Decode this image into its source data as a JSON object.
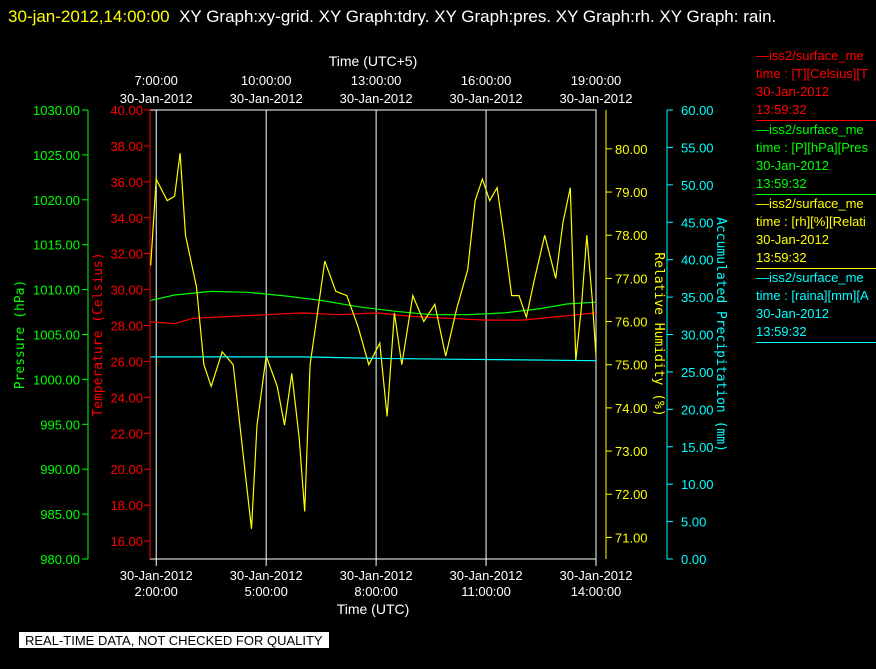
{
  "header": {
    "timestamp": "30-jan-2012,14:00:00",
    "title_rest": "XY Graph:xy-grid.  XY Graph:tdry.  XY Graph:pres.  XY Graph:rh.  XY Graph: rain."
  },
  "footer_note": "REAL-TIME DATA, NOT CHECKED FOR QUALITY",
  "legend": [
    {
      "line1": "iss2/surface_me",
      "line2": "time : [T][Celsius][T",
      "line3": "30-Jan-2012",
      "line4": "13:59:32",
      "color": "#ff0000"
    },
    {
      "line1": "iss2/surface_me",
      "line2": "time : [P][hPa][Pres",
      "line3": "30-Jan-2012",
      "line4": "13:59:32",
      "color": "#00ff00"
    },
    {
      "line1": "iss2/surface_me",
      "line2": "time : [rh][%][Relati",
      "line3": "30-Jan-2012",
      "line4": "13:59:32",
      "color": "#ffff00"
    },
    {
      "line1": "iss2/surface_me",
      "line2": "time : [raina][mm][A",
      "line3": "30-Jan-2012",
      "line4": "13:59:32",
      "color": "#00ffff"
    }
  ],
  "chart_data": {
    "type": "line",
    "x_bottom_label": "Time (UTC)",
    "x_top_label": "Time (UTC+5)",
    "x_range_utc_hours": [
      1.83,
      14.0
    ],
    "bottom_ticks": [
      {
        "h": 2,
        "date": "30-Jan-2012",
        "time": "2:00:00"
      },
      {
        "h": 5,
        "date": "30-Jan-2012",
        "time": "5:00:00"
      },
      {
        "h": 8,
        "date": "30-Jan-2012",
        "time": "8:00:00"
      },
      {
        "h": 11,
        "date": "30-Jan-2012",
        "time": "11:00:00"
      },
      {
        "h": 14,
        "date": "30-Jan-2012",
        "time": "14:00:00"
      }
    ],
    "top_ticks": [
      {
        "h": 2,
        "date": "30-Jan-2012",
        "time": "7:00:00"
      },
      {
        "h": 5,
        "date": "30-Jan-2012",
        "time": "10:00:00"
      },
      {
        "h": 8,
        "date": "30-Jan-2012",
        "time": "13:00:00"
      },
      {
        "h": 11,
        "date": "30-Jan-2012",
        "time": "16:00:00"
      },
      {
        "h": 14,
        "date": "30-Jan-2012",
        "time": "19:00:00"
      }
    ],
    "grid": true,
    "axes": {
      "pressure": {
        "label": "Pressure (hPa)",
        "color": "#00ff00",
        "min": 980,
        "max": 1030,
        "ticks": [
          "980.00",
          "985.00",
          "990.00",
          "995.00",
          "1000.00",
          "1005.00",
          "1010.00",
          "1015.00",
          "1020.00",
          "1025.00",
          "1030.00"
        ]
      },
      "temperature": {
        "label": "Temperature (Celsius)",
        "color": "#ff0000",
        "min": 15,
        "max": 40,
        "ticks": [
          "16.00",
          "18.00",
          "20.00",
          "22.00",
          "24.00",
          "26.00",
          "28.00",
          "30.00",
          "32.00",
          "34.00",
          "36.00",
          "38.00",
          "40.00"
        ]
      },
      "rh": {
        "label": "Relative Humidity (%)",
        "color": "#ffff00",
        "min": 70.5,
        "max": 80.9,
        "ticks": [
          "71.00",
          "72.00",
          "73.00",
          "74.00",
          "75.00",
          "76.00",
          "77.00",
          "78.00",
          "79.00",
          "80.00"
        ]
      },
      "rain": {
        "label": "Accumulated Precipitation (mm)",
        "color": "#00ffff",
        "min": 0,
        "max": 60,
        "ticks": [
          "0.00",
          "5.00",
          "10.00",
          "15.00",
          "20.00",
          "25.00",
          "30.00",
          "35.00",
          "40.00",
          "45.00",
          "50.00",
          "55.00",
          "60.00"
        ]
      }
    },
    "series": [
      {
        "name": "iss2/surface_me time : [T][Celsius][T",
        "axis": "temperature",
        "color": "#ff0000",
        "points": [
          [
            1.85,
            28.2
          ],
          [
            2.5,
            28.1
          ],
          [
            3.0,
            28.4
          ],
          [
            4.0,
            28.5
          ],
          [
            5.0,
            28.6
          ],
          [
            6.0,
            28.7
          ],
          [
            7.0,
            28.6
          ],
          [
            8.0,
            28.7
          ],
          [
            9.0,
            28.5
          ],
          [
            10.0,
            28.4
          ],
          [
            11.0,
            28.3
          ],
          [
            12.0,
            28.3
          ],
          [
            13.0,
            28.5
          ],
          [
            14.0,
            28.7
          ]
        ]
      },
      {
        "name": "iss2/surface_me time : [P][hPa][Pres",
        "axis": "pressure",
        "color": "#00ff00",
        "points": [
          [
            1.85,
            1008.8
          ],
          [
            2.5,
            1009.4
          ],
          [
            3.5,
            1009.8
          ],
          [
            4.5,
            1009.7
          ],
          [
            5.5,
            1009.3
          ],
          [
            6.5,
            1008.8
          ],
          [
            7.5,
            1008.1
          ],
          [
            8.5,
            1007.6
          ],
          [
            9.5,
            1007.2
          ],
          [
            10.5,
            1007.2
          ],
          [
            11.5,
            1007.4
          ],
          [
            12.5,
            1007.9
          ],
          [
            13.2,
            1008.4
          ],
          [
            14.0,
            1008.6
          ]
        ]
      },
      {
        "name": "iss2/surface_me time : [rh][%][Relati",
        "axis": "rh",
        "color": "#ffff00",
        "points": [
          [
            1.85,
            77.3
          ],
          [
            2.0,
            79.3
          ],
          [
            2.3,
            78.8
          ],
          [
            2.5,
            78.9
          ],
          [
            2.65,
            79.9
          ],
          [
            2.8,
            78.0
          ],
          [
            3.1,
            76.8
          ],
          [
            3.3,
            75.0
          ],
          [
            3.5,
            74.5
          ],
          [
            3.8,
            75.3
          ],
          [
            4.1,
            75.0
          ],
          [
            4.4,
            72.7
          ],
          [
            4.6,
            71.2
          ],
          [
            4.75,
            73.6
          ],
          [
            5.0,
            75.2
          ],
          [
            5.3,
            74.5
          ],
          [
            5.5,
            73.6
          ],
          [
            5.7,
            74.8
          ],
          [
            5.9,
            73.3
          ],
          [
            6.05,
            71.6
          ],
          [
            6.2,
            75.0
          ],
          [
            6.4,
            76.2
          ],
          [
            6.6,
            77.4
          ],
          [
            6.9,
            76.7
          ],
          [
            7.2,
            76.6
          ],
          [
            7.5,
            75.9
          ],
          [
            7.8,
            75.0
          ],
          [
            8.1,
            75.5
          ],
          [
            8.3,
            73.8
          ],
          [
            8.5,
            76.2
          ],
          [
            8.7,
            75.0
          ],
          [
            9.0,
            76.6
          ],
          [
            9.3,
            76.0
          ],
          [
            9.6,
            76.4
          ],
          [
            9.9,
            75.2
          ],
          [
            10.2,
            76.3
          ],
          [
            10.5,
            77.2
          ],
          [
            10.7,
            78.8
          ],
          [
            10.9,
            79.3
          ],
          [
            11.1,
            78.8
          ],
          [
            11.3,
            79.1
          ],
          [
            11.5,
            77.9
          ],
          [
            11.7,
            76.6
          ],
          [
            11.9,
            76.6
          ],
          [
            12.1,
            76.1
          ],
          [
            12.3,
            76.9
          ],
          [
            12.6,
            78.0
          ],
          [
            12.9,
            77.0
          ],
          [
            13.1,
            78.3
          ],
          [
            13.3,
            79.1
          ],
          [
            13.45,
            75.1
          ],
          [
            13.6,
            76.3
          ],
          [
            13.75,
            78.0
          ],
          [
            13.9,
            76.5
          ],
          [
            14.0,
            75.2
          ]
        ]
      },
      {
        "name": "iss2/surface_me time : [raina][mm][A",
        "axis": "rain",
        "color": "#00ffff",
        "points": [
          [
            1.85,
            27.0
          ],
          [
            6.0,
            27.0
          ],
          [
            8.0,
            26.8
          ],
          [
            10.0,
            26.7
          ],
          [
            12.0,
            26.6
          ],
          [
            14.0,
            26.5
          ]
        ]
      }
    ]
  }
}
